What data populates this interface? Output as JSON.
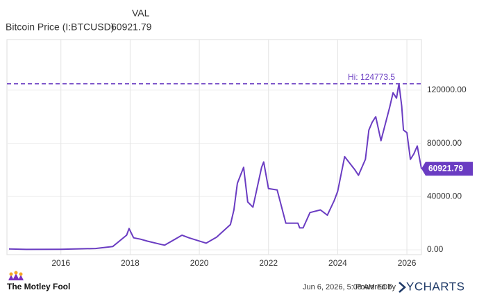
{
  "chart_data": {
    "type": "line",
    "legend_header": "VAL",
    "series": [
      {
        "name": "Bitcoin Price (I:BTCUSD)",
        "color": "#6a3cc2",
        "x": [
          2014.5,
          2015.0,
          2016.0,
          2017.0,
          2017.5,
          2017.9,
          2017.97,
          2018.1,
          2018.3,
          2018.5,
          2018.9,
          2019.0,
          2019.5,
          2019.7,
          2020.2,
          2020.5,
          2020.9,
          2021.0,
          2021.1,
          2021.28,
          2021.4,
          2021.55,
          2021.8,
          2021.86,
          2022.0,
          2022.25,
          2022.4,
          2022.5,
          2022.85,
          2022.9,
          2023.0,
          2023.2,
          2023.5,
          2023.7,
          2023.9,
          2024.0,
          2024.2,
          2024.5,
          2024.6,
          2024.8,
          2024.9,
          2025.0,
          2025.1,
          2025.25,
          2025.5,
          2025.6,
          2025.7,
          2025.77,
          2025.85,
          2025.9,
          2026.0,
          2026.1,
          2026.2,
          2026.3,
          2026.42
        ],
        "values": [
          600,
          300,
          430,
          1000,
          2500,
          11000,
          16000,
          9000,
          8000,
          6500,
          4000,
          3500,
          11000,
          9000,
          5000,
          9500,
          19000,
          30000,
          50000,
          62000,
          36000,
          32000,
          62000,
          66000,
          46000,
          45000,
          30000,
          20000,
          20000,
          16500,
          16500,
          28000,
          30000,
          26000,
          37000,
          44000,
          70000,
          60000,
          56000,
          68000,
          90000,
          96000,
          100000,
          82000,
          107000,
          118000,
          114000,
          124773.5,
          108000,
          90000,
          88000,
          68000,
          72000,
          78000,
          60921.79
        ]
      }
    ],
    "hi_line": {
      "value": 124773.5,
      "label": "Hi: 124773.5"
    },
    "xlim": [
      2014.44,
      2026.42
    ],
    "xticks": [
      2016,
      2018,
      2020,
      2022,
      2024,
      2026
    ],
    "ylim": [
      -3650,
      158000
    ],
    "yticks": [
      {
        "value": 0,
        "label": "0.00"
      },
      {
        "value": 40000,
        "label": "40000.00"
      },
      {
        "value": 80000,
        "label": "80000.00"
      },
      {
        "value": 120000,
        "label": "120000.00"
      }
    ],
    "grid": true,
    "source": "The Motley Fool",
    "timestamp": "Jun 6, 2026, 5:08 AM EDT",
    "powered_by": "Powered by",
    "brand": "YCHARTS"
  }
}
